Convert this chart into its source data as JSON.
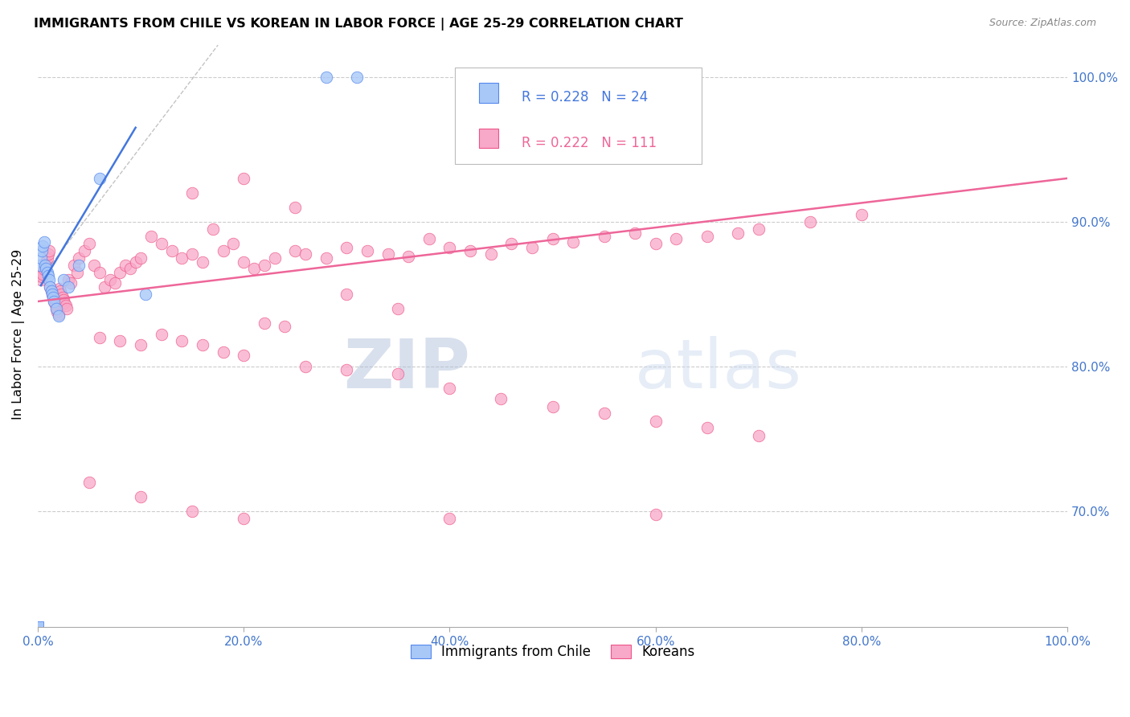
{
  "title": "IMMIGRANTS FROM CHILE VS KOREAN IN LABOR FORCE | AGE 25-29 CORRELATION CHART",
  "source": "Source: ZipAtlas.com",
  "ylabel": "In Labor Force | Age 25-29",
  "xlim": [
    0.0,
    1.0
  ],
  "ylim": [
    0.62,
    1.025
  ],
  "yticks": [
    0.7,
    0.8,
    0.9,
    1.0
  ],
  "xticks": [
    0.0,
    0.2,
    0.4,
    0.6,
    0.8,
    1.0
  ],
  "xtick_labels": [
    "0.0%",
    "20.0%",
    "40.0%",
    "60.0%",
    "80.0%",
    "100.0%"
  ],
  "ytick_labels": [
    "70.0%",
    "80.0%",
    "90.0%",
    "100.0%"
  ],
  "chile_color": "#a8c8f8",
  "korean_color": "#f8a8c8",
  "chile_edge_color": "#5588ee",
  "korean_edge_color": "#ee5588",
  "chile_line_color": "#4477dd",
  "korean_line_color": "#ee6699",
  "chile_R": 0.228,
  "chile_N": 24,
  "korean_R": 0.222,
  "korean_N": 111,
  "watermark_zip": "ZIP",
  "watermark_atlas": "atlas",
  "legend_box_color": "#dddddd",
  "chile_x": [
    0.002,
    0.003,
    0.004,
    0.005,
    0.006,
    0.007,
    0.008,
    0.009,
    0.01,
    0.011,
    0.012,
    0.013,
    0.014,
    0.015,
    0.016,
    0.018,
    0.02,
    0.025,
    0.03,
    0.04,
    0.06,
    0.105,
    0.28,
    0.31
  ],
  "chile_y": [
    0.87,
    0.875,
    0.88,
    0.883,
    0.886,
    0.87,
    0.868,
    0.865,
    0.863,
    0.86,
    0.855,
    0.852,
    0.85,
    0.848,
    0.845,
    0.84,
    0.835,
    0.86,
    0.855,
    0.87,
    0.93,
    0.85,
    1.0,
    1.0
  ],
  "korean_x": [
    0.003,
    0.004,
    0.005,
    0.006,
    0.007,
    0.008,
    0.009,
    0.01,
    0.011,
    0.012,
    0.013,
    0.014,
    0.015,
    0.016,
    0.017,
    0.018,
    0.019,
    0.02,
    0.021,
    0.022,
    0.023,
    0.024,
    0.025,
    0.026,
    0.027,
    0.028,
    0.03,
    0.032,
    0.035,
    0.038,
    0.04,
    0.045,
    0.05,
    0.055,
    0.06,
    0.065,
    0.07,
    0.075,
    0.08,
    0.085,
    0.09,
    0.095,
    0.1,
    0.11,
    0.12,
    0.13,
    0.14,
    0.15,
    0.16,
    0.17,
    0.18,
    0.19,
    0.2,
    0.21,
    0.22,
    0.23,
    0.25,
    0.26,
    0.28,
    0.3,
    0.32,
    0.34,
    0.36,
    0.38,
    0.4,
    0.42,
    0.44,
    0.46,
    0.48,
    0.5,
    0.52,
    0.55,
    0.58,
    0.6,
    0.62,
    0.65,
    0.68,
    0.7,
    0.75,
    0.8,
    0.06,
    0.08,
    0.1,
    0.12,
    0.14,
    0.16,
    0.18,
    0.2,
    0.22,
    0.24,
    0.26,
    0.3,
    0.35,
    0.4,
    0.45,
    0.5,
    0.55,
    0.6,
    0.65,
    0.7,
    0.15,
    0.2,
    0.25,
    0.3,
    0.35,
    0.05,
    0.1,
    0.15,
    0.2,
    0.4,
    0.6
  ],
  "korean_y": [
    0.86,
    0.862,
    0.864,
    0.867,
    0.87,
    0.872,
    0.875,
    0.878,
    0.88,
    0.855,
    0.852,
    0.85,
    0.848,
    0.845,
    0.843,
    0.84,
    0.838,
    0.836,
    0.854,
    0.852,
    0.85,
    0.848,
    0.846,
    0.844,
    0.842,
    0.84,
    0.86,
    0.858,
    0.87,
    0.865,
    0.875,
    0.88,
    0.885,
    0.87,
    0.865,
    0.855,
    0.86,
    0.858,
    0.865,
    0.87,
    0.868,
    0.872,
    0.875,
    0.89,
    0.885,
    0.88,
    0.875,
    0.878,
    0.872,
    0.895,
    0.88,
    0.885,
    0.872,
    0.868,
    0.87,
    0.875,
    0.88,
    0.878,
    0.875,
    0.882,
    0.88,
    0.878,
    0.876,
    0.888,
    0.882,
    0.88,
    0.878,
    0.885,
    0.882,
    0.888,
    0.886,
    0.89,
    0.892,
    0.885,
    0.888,
    0.89,
    0.892,
    0.895,
    0.9,
    0.905,
    0.82,
    0.818,
    0.815,
    0.822,
    0.818,
    0.815,
    0.81,
    0.808,
    0.83,
    0.828,
    0.8,
    0.798,
    0.795,
    0.785,
    0.778,
    0.772,
    0.768,
    0.762,
    0.758,
    0.752,
    0.92,
    0.93,
    0.91,
    0.85,
    0.84,
    0.72,
    0.71,
    0.7,
    0.695,
    0.695,
    0.698
  ]
}
